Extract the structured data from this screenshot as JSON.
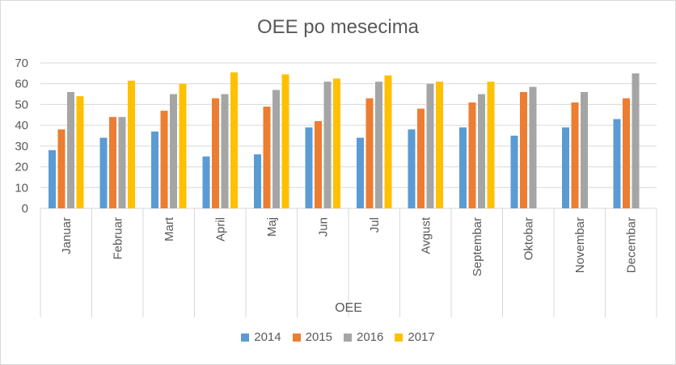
{
  "chart_data": {
    "type": "bar",
    "title": "OEE po mesecima",
    "xlabel": "OEE",
    "ylabel": "",
    "ylim": [
      0,
      70
    ],
    "yticks": [
      0,
      10,
      20,
      30,
      40,
      50,
      60,
      70
    ],
    "grid": true,
    "legend_position": "bottom",
    "categories": [
      "Januar",
      "Februar",
      "Mart",
      "April",
      "Maj",
      "Jun",
      "Jul",
      "Avgust",
      "Septembar",
      "Oktobar",
      "Novembar",
      "Decembar"
    ],
    "series": [
      {
        "name": "2014",
        "color": "#5b9bd5",
        "values": [
          28,
          34,
          37,
          25,
          26,
          39,
          34,
          38,
          39,
          35,
          39,
          43
        ]
      },
      {
        "name": "2015",
        "color": "#ed7d31",
        "values": [
          38,
          44,
          47,
          53,
          49,
          42,
          53,
          48,
          51,
          56,
          51,
          53
        ]
      },
      {
        "name": "2016",
        "color": "#a5a5a5",
        "values": [
          56,
          44,
          55,
          55,
          57,
          61,
          61,
          60,
          55,
          58.5,
          56,
          65
        ]
      },
      {
        "name": "2017",
        "color": "#ffc000",
        "values": [
          54,
          61.5,
          60,
          65.5,
          64.5,
          62.5,
          64,
          61,
          61,
          null,
          null,
          null
        ]
      }
    ]
  }
}
